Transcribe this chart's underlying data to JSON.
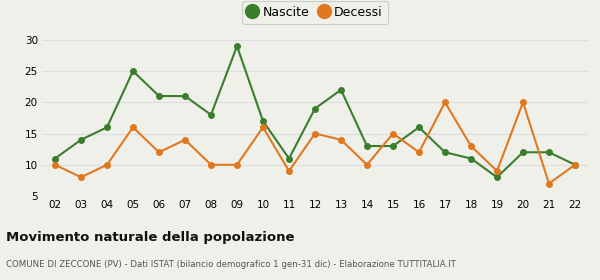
{
  "years": [
    "02",
    "03",
    "04",
    "05",
    "06",
    "07",
    "08",
    "09",
    "10",
    "11",
    "12",
    "13",
    "14",
    "15",
    "16",
    "17",
    "18",
    "19",
    "20",
    "21",
    "22"
  ],
  "nascite": [
    11,
    14,
    16,
    25,
    21,
    21,
    18,
    29,
    17,
    11,
    19,
    22,
    13,
    13,
    16,
    12,
    11,
    8,
    12,
    12,
    10
  ],
  "decessi": [
    10,
    8,
    10,
    16,
    12,
    14,
    10,
    10,
    16,
    9,
    15,
    14,
    10,
    15,
    12,
    20,
    13,
    9,
    20,
    7,
    10
  ],
  "nascite_color": "#3a7d2c",
  "decessi_color": "#e07820",
  "ylim": [
    5,
    31
  ],
  "yticks": [
    5,
    10,
    15,
    20,
    25,
    30
  ],
  "title": "Movimento naturale della popolazione",
  "subtitle": "COMUNE DI ZECCONE (PV) - Dati ISTAT (bilancio demografico 1 gen-31 dic) - Elaborazione TUTTITALIA.IT",
  "legend_nascite": "Nascite",
  "legend_decessi": "Decessi",
  "bg_color": "#f0f0eb",
  "plot_bg_color": "#f0f0eb",
  "grid_color": "#dddddd"
}
